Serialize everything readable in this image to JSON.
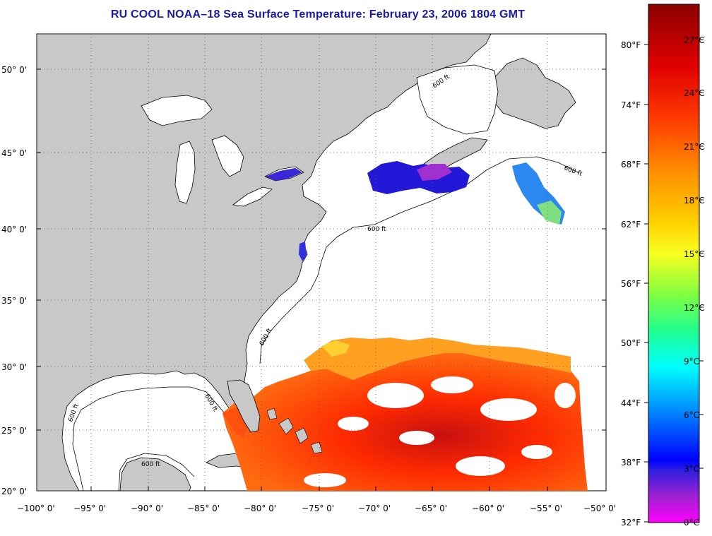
{
  "title": "RU COOL  NOAA–18  Sea Surface Temperature:  February 23, 2006 1804 GMT",
  "map": {
    "lat_labels": [
      "50° 0'",
      "45° 0'",
      "40° 0'",
      "35° 0'",
      "30° 0'",
      "25° 0'",
      "20° 0'"
    ],
    "lon_labels": [
      "−100° 0'",
      "−95° 0'",
      "−90° 0'",
      "−85° 0'",
      "−80° 0'",
      "−75° 0'",
      "−70° 0'",
      "−65° 0'",
      "−60° 0'",
      "−55° 0'",
      "−50° 0'"
    ],
    "contour_labels": [
      "600 ft",
      "600 ft",
      "600 ft",
      "600 ft",
      "600 ft",
      "600 ft",
      "600 ft"
    ],
    "land_color": "#c8c8c8",
    "ocean_color": "#ffffff"
  },
  "colorbar": {
    "fahrenheit_labels": [
      "80°F",
      "74°F",
      "68°F",
      "62°F",
      "56°F",
      "50°F",
      "44°F",
      "38°F",
      "32°F"
    ],
    "celsius_labels": [
      "27°C",
      "24°C",
      "21°C",
      "18°C",
      "15°C",
      "12°C",
      "9°C",
      "6°C",
      "3°C",
      "0°C"
    ],
    "gradient_colors": [
      "#8b0000",
      "#ff1a00",
      "#ff8c00",
      "#ffff00",
      "#40ff40",
      "#00ffff",
      "#0080ff",
      "#0000ff",
      "#8000c0",
      "#ff00ff"
    ]
  }
}
